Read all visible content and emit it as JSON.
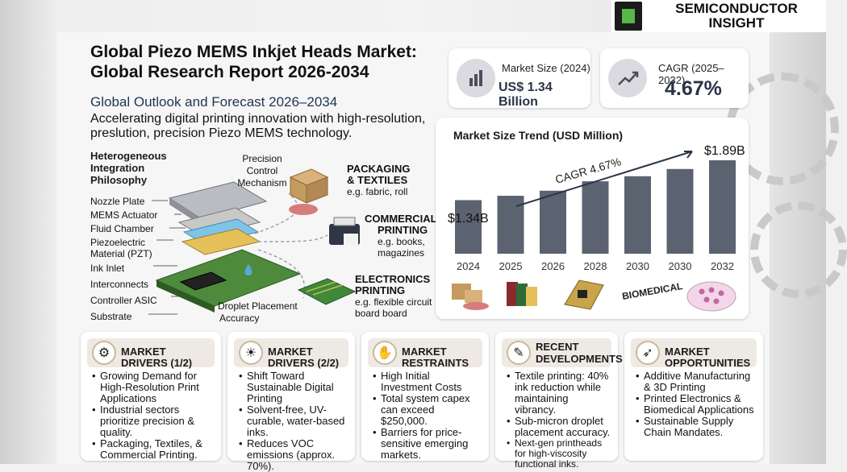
{
  "brand": {
    "name_line1": "SEMICONDUCTOR",
    "name_line2": "INSIGHT"
  },
  "header": {
    "title_line1": "Global Piezo MEMS Inkjet Heads Market:",
    "title_line2": "Global Research Report 2026-2034",
    "subtitle": "Global Outlook and Forecast 2026–2034",
    "description": "Accelerating digital printing innovation with high-resolution, preslution, precision Piezo MEMS technology."
  },
  "stats": {
    "market_size": {
      "label": "Market Size (2024)",
      "value": "US$ 1.34 Billion",
      "icon": "bar-chart-icon"
    },
    "cagr": {
      "label": "CAGR (2025–2032)",
      "value": "4.67%",
      "icon": "trend-up-icon"
    }
  },
  "diagram": {
    "heading": "Heterogeneous Integration Philosophy",
    "layers": [
      "Nozzle Plate",
      "MEMS Actuator",
      "Fluid Chamber",
      "Piezoelectric",
      "Material (PZT)",
      "Ink Inlet",
      "Interconnects",
      "Controller ASIC",
      "Substrate"
    ],
    "precision_label_1": "Precision",
    "precision_label_2": "Control",
    "precision_label_3": "Mechanism",
    "droplet_label_1": "Droplet Placement",
    "droplet_label_2": "Accuracy",
    "apps": [
      {
        "title1": "PACKAGING",
        "title2": "& TEXTILES",
        "sub1": "e.g. fabric, roll",
        "sub2": ""
      },
      {
        "title1": "COMMERCIAL",
        "title2": "PRINTING",
        "sub1": "e.g. books,",
        "sub2": "magazines"
      },
      {
        "title1": "ELECTRONICS",
        "title2": "PRINTING",
        "sub1": "e.g. flexible circuit",
        "sub2": "board board"
      }
    ]
  },
  "chart_data": {
    "type": "bar",
    "title": "Market Size Trend (USD Million)",
    "categories": [
      "2024",
      "2025",
      "2026",
      "2028",
      "2030",
      "2030",
      "2032"
    ],
    "values": [
      1.34,
      1.4,
      1.47,
      1.6,
      1.67,
      1.77,
      1.89
    ],
    "data_labels": {
      "first": "$1.34B",
      "last": "$1.89B"
    },
    "annotation": "CAGR 4.67%",
    "bar_color": "#5b6370",
    "icons_below": [
      "boxes-icon",
      "books-icon",
      "circuit-board-icon",
      "BIOMEDICAL",
      "petri-dish-icon"
    ],
    "biomedical_label": "BIOMEDICAL"
  },
  "cards": [
    {
      "title": "MARKET DRIVERS (1/2)",
      "icon": "gears-icon",
      "items": [
        "Growing Demand for High-Resolution Print Applications",
        "Industrial sectors prioritize precision & quality.",
        "Packaging, Textiles, & Commercial Printing."
      ]
    },
    {
      "title": "MARKET DRIVERS (2/2)",
      "icon": "lightbulb-icon",
      "items": [
        "Shift Toward Sustainable Digital Printing",
        "Solvent-free, UV-curable, water-based inks.",
        "Reduces VOC emissions (approx. 70%)."
      ]
    },
    {
      "title": "MARKET RESTRAINTS",
      "icon": "hand-stop-icon",
      "items": [
        "High Initial Investment Costs",
        "Total system capex can exceed $250,000.",
        "Barriers for price-sensitive emerging markets."
      ]
    },
    {
      "title": "RECENT DEVELOPMENTS",
      "icon": "clipboard-icon",
      "items": [
        "Textile printing: 40% ink reduction while maintaining vibrancy.",
        "Sub-micron droplet placement accuracy.",
        "Next-gen printheads for high-viscosity functional inks."
      ]
    },
    {
      "title": "MARKET OPPORTUNITIES",
      "icon": "rocket-icon",
      "items": [
        "Additive Manufacturing & 3D Printing",
        "Printed Electronics & Biomedical Applications",
        "Sustainable Supply Chain Mandates."
      ]
    }
  ],
  "colors": {
    "accent": "#2a3447",
    "bar": "#5b6370",
    "card_header": "#eeeae3"
  }
}
